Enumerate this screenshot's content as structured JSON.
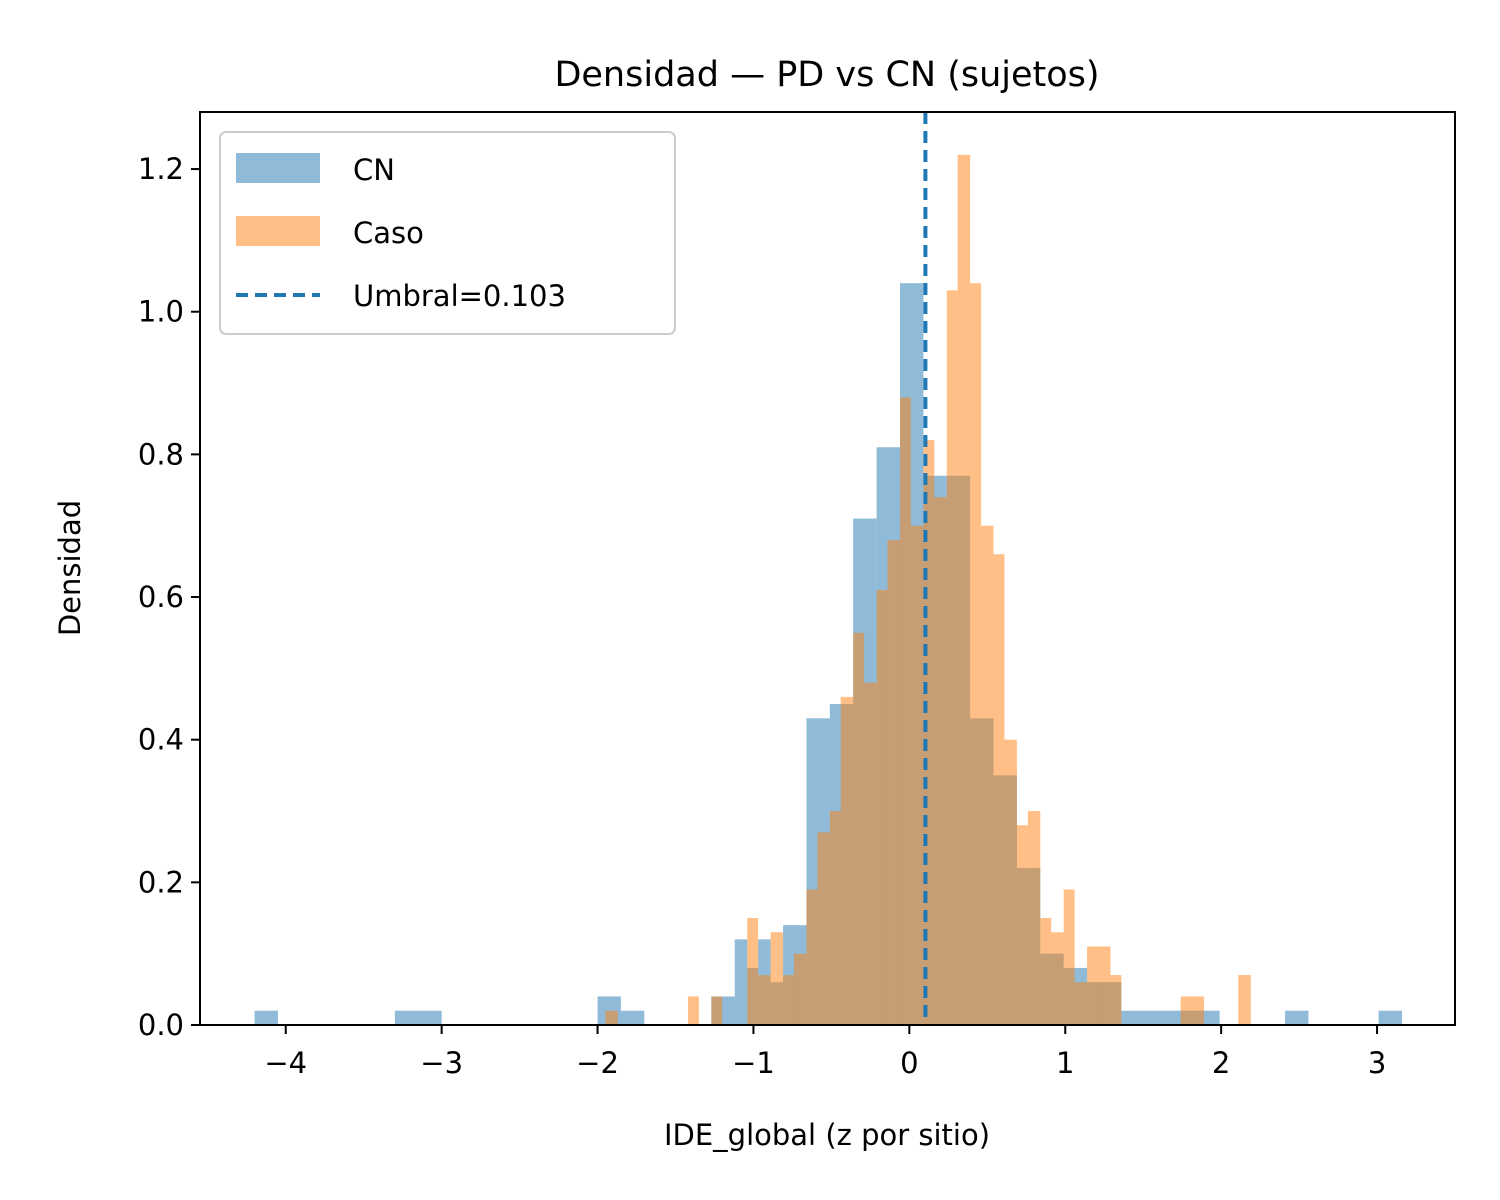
{
  "chart_data": {
    "type": "bar",
    "title": "Densidad — PD vs CN (sujetos)",
    "xlabel": "IDE_global (z por sitio)",
    "ylabel": "Densidad",
    "xlim": [
      -4.55,
      3.5
    ],
    "ylim": [
      0,
      1.28
    ],
    "x_ticks": [
      -4,
      -3,
      -2,
      -1,
      0,
      1,
      2,
      3
    ],
    "x_tick_labels": [
      "−4",
      "−3",
      "−2",
      "−1",
      "0",
      "1",
      "2",
      "3"
    ],
    "y_ticks": [
      0.0,
      0.2,
      0.4,
      0.6,
      0.8,
      1.0,
      1.2
    ],
    "y_tick_labels": [
      "0.0",
      "0.2",
      "0.4",
      "0.6",
      "0.8",
      "1.0",
      "1.2"
    ],
    "grid": false,
    "legend_placement": "upper-left",
    "threshold": {
      "label": "Umbral=0.103",
      "value": 0.103,
      "color": "#1f77b4"
    },
    "series": [
      {
        "name": "CN",
        "color": "#1f77b4",
        "opacity": 0.5,
        "bins": [
          {
            "x0": -4.2,
            "x1": -4.05,
            "y": 0.02
          },
          {
            "x0": -3.3,
            "x1": -3.0,
            "y": 0.02
          },
          {
            "x0": -2.0,
            "x1": -1.85,
            "y": 0.04
          },
          {
            "x0": -1.85,
            "x1": -1.7,
            "y": 0.02
          },
          {
            "x0": -1.27,
            "x1": -1.12,
            "y": 0.04
          },
          {
            "x0": -1.12,
            "x1": -1.04,
            "y": 0.12
          },
          {
            "x0": -1.04,
            "x1": -0.97,
            "y": 0.08
          },
          {
            "x0": -0.97,
            "x1": -0.89,
            "y": 0.12
          },
          {
            "x0": -0.89,
            "x1": -0.81,
            "y": 0.06
          },
          {
            "x0": -0.81,
            "x1": -0.66,
            "y": 0.14
          },
          {
            "x0": -0.66,
            "x1": -0.51,
            "y": 0.43
          },
          {
            "x0": -0.51,
            "x1": -0.36,
            "y": 0.45
          },
          {
            "x0": -0.36,
            "x1": -0.21,
            "y": 0.71
          },
          {
            "x0": -0.21,
            "x1": -0.06,
            "y": 0.81
          },
          {
            "x0": -0.06,
            "x1": 0.09,
            "y": 1.04
          },
          {
            "x0": 0.09,
            "x1": 0.24,
            "y": 0.77
          },
          {
            "x0": 0.24,
            "x1": 0.39,
            "y": 0.77
          },
          {
            "x0": 0.39,
            "x1": 0.54,
            "y": 0.43
          },
          {
            "x0": 0.54,
            "x1": 0.69,
            "y": 0.35
          },
          {
            "x0": 0.69,
            "x1": 0.84,
            "y": 0.22
          },
          {
            "x0": 0.84,
            "x1": 0.99,
            "y": 0.1
          },
          {
            "x0": 0.99,
            "x1": 1.14,
            "y": 0.08
          },
          {
            "x0": 1.14,
            "x1": 1.36,
            "y": 0.06
          },
          {
            "x0": 1.36,
            "x1": 1.99,
            "y": 0.02
          },
          {
            "x0": 2.41,
            "x1": 2.56,
            "y": 0.02
          },
          {
            "x0": 3.01,
            "x1": 3.16,
            "y": 0.02
          }
        ]
      },
      {
        "name": "Caso",
        "color": "#ff7f0e",
        "opacity": 0.5,
        "bins": [
          {
            "x0": -1.95,
            "x1": -1.87,
            "y": 0.02
          },
          {
            "x0": -1.42,
            "x1": -1.35,
            "y": 0.04
          },
          {
            "x0": -1.27,
            "x1": -1.2,
            "y": 0.04
          },
          {
            "x0": -1.04,
            "x1": -0.97,
            "y": 0.15
          },
          {
            "x0": -0.97,
            "x1": -0.89,
            "y": 0.07
          },
          {
            "x0": -0.89,
            "x1": -0.81,
            "y": 0.13
          },
          {
            "x0": -0.81,
            "x1": -0.74,
            "y": 0.07
          },
          {
            "x0": -0.74,
            "x1": -0.66,
            "y": 0.1
          },
          {
            "x0": -0.66,
            "x1": -0.59,
            "y": 0.19
          },
          {
            "x0": -0.59,
            "x1": -0.51,
            "y": 0.27
          },
          {
            "x0": -0.51,
            "x1": -0.44,
            "y": 0.3
          },
          {
            "x0": -0.44,
            "x1": -0.36,
            "y": 0.46
          },
          {
            "x0": -0.36,
            "x1": -0.29,
            "y": 0.55
          },
          {
            "x0": -0.29,
            "x1": -0.21,
            "y": 0.48
          },
          {
            "x0": -0.21,
            "x1": -0.14,
            "y": 0.61
          },
          {
            "x0": -0.14,
            "x1": -0.06,
            "y": 0.68
          },
          {
            "x0": -0.06,
            "x1": 0.01,
            "y": 0.88
          },
          {
            "x0": 0.01,
            "x1": 0.09,
            "y": 0.7
          },
          {
            "x0": 0.09,
            "x1": 0.16,
            "y": 0.82
          },
          {
            "x0": 0.16,
            "x1": 0.24,
            "y": 0.74
          },
          {
            "x0": 0.24,
            "x1": 0.31,
            "y": 1.03
          },
          {
            "x0": 0.31,
            "x1": 0.39,
            "y": 1.22
          },
          {
            "x0": 0.39,
            "x1": 0.46,
            "y": 1.04
          },
          {
            "x0": 0.46,
            "x1": 0.54,
            "y": 0.7
          },
          {
            "x0": 0.54,
            "x1": 0.61,
            "y": 0.66
          },
          {
            "x0": 0.61,
            "x1": 0.69,
            "y": 0.4
          },
          {
            "x0": 0.69,
            "x1": 0.76,
            "y": 0.28
          },
          {
            "x0": 0.76,
            "x1": 0.84,
            "y": 0.3
          },
          {
            "x0": 0.84,
            "x1": 0.91,
            "y": 0.15
          },
          {
            "x0": 0.91,
            "x1": 0.99,
            "y": 0.13
          },
          {
            "x0": 0.99,
            "x1": 1.06,
            "y": 0.19
          },
          {
            "x0": 1.06,
            "x1": 1.14,
            "y": 0.06
          },
          {
            "x0": 1.14,
            "x1": 1.21,
            "y": 0.11
          },
          {
            "x0": 1.21,
            "x1": 1.29,
            "y": 0.11
          },
          {
            "x0": 1.29,
            "x1": 1.36,
            "y": 0.07
          },
          {
            "x0": 1.74,
            "x1": 1.89,
            "y": 0.04
          },
          {
            "x0": 2.11,
            "x1": 2.19,
            "y": 0.07
          }
        ]
      }
    ]
  }
}
